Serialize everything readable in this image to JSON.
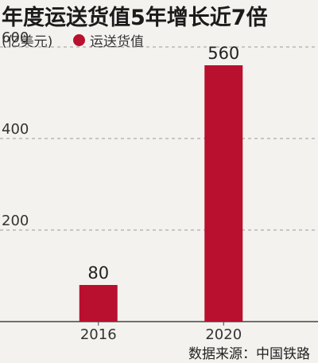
{
  "header": {
    "title": "年度运送货值5年增长近7倍",
    "unit": "(亿美元)"
  },
  "legend": {
    "label": "运送货值",
    "color": "#b8102e"
  },
  "footer": {
    "source": "数据来源：中国铁路"
  },
  "chart_data": {
    "type": "bar",
    "categories": [
      "2016",
      "2020"
    ],
    "series": [
      {
        "name": "运送货值",
        "values": [
          80,
          560
        ],
        "color": "#b8102e"
      }
    ],
    "ylabel": "(亿美元)",
    "ylim": [
      0,
      600
    ],
    "yticks": [
      200,
      400,
      600
    ],
    "grid": true,
    "legend_position": "top-left"
  }
}
